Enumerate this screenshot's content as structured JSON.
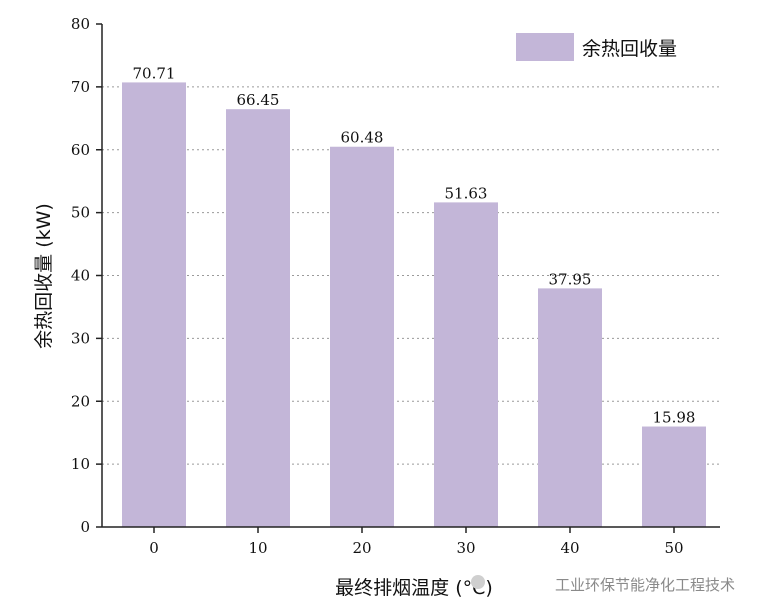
{
  "chart_data": {
    "type": "bar",
    "categories": [
      "0",
      "10",
      "20",
      "30",
      "40",
      "50"
    ],
    "series": [
      {
        "name": "余热回收量",
        "values": [
          70.71,
          66.45,
          60.48,
          51.63,
          37.95,
          15.98
        ]
      }
    ],
    "data_labels": [
      "70.71",
      "66.45",
      "60.48",
      "51.63",
      "37.95",
      "15.98"
    ],
    "xlabel": "最终排烟温度 (°C)",
    "ylabel": "余热回收量 (kW)",
    "ylim": [
      0,
      80
    ],
    "yticks": [
      "0",
      "10",
      "20",
      "30",
      "40",
      "50",
      "60",
      "70",
      "80"
    ],
    "grid": true,
    "legend_position": "top-right",
    "bar_color": "#c3b6d8"
  },
  "watermark": "工业环保节能净化工程技术"
}
